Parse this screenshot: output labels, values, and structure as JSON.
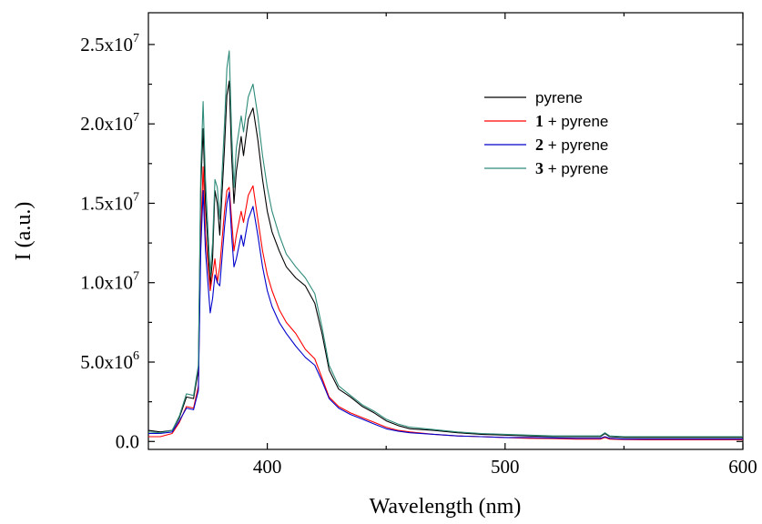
{
  "chart_data": {
    "type": "line",
    "xlabel": "Wavelength (nm)",
    "ylabel": "I (a.u.)",
    "xlim": [
      350,
      600
    ],
    "ylim": [
      -500000,
      27000000
    ],
    "x_ticks": [
      {
        "value": 400,
        "label": "400"
      },
      {
        "value": 500,
        "label": "500"
      },
      {
        "value": 600,
        "label": "600"
      }
    ],
    "y_ticks": [
      {
        "value": 0,
        "mant": "0.0",
        "exp": ""
      },
      {
        "value": 5000000,
        "mant": "5.0x10",
        "exp": "6"
      },
      {
        "value": 10000000,
        "mant": "1.0x10",
        "exp": "7"
      },
      {
        "value": 15000000,
        "mant": "1.5x10",
        "exp": "7"
      },
      {
        "value": 20000000,
        "mant": "2.0x10",
        "exp": "7"
      },
      {
        "value": 25000000,
        "mant": "2.5x10",
        "exp": "7"
      }
    ],
    "grid": false,
    "legend_position": "top-right",
    "series": [
      {
        "name": "pyrene",
        "bold_prefix": "",
        "label_rest": "pyrene",
        "color": "#000000",
        "points": [
          [
            350,
            700000
          ],
          [
            355,
            600000
          ],
          [
            360,
            700000
          ],
          [
            363,
            1500000
          ],
          [
            366,
            2800000
          ],
          [
            369,
            2700000
          ],
          [
            371,
            4500000
          ],
          [
            372,
            16000000
          ],
          [
            373,
            19700000
          ],
          [
            374,
            15000000
          ],
          [
            376,
            9800000
          ],
          [
            377,
            11500000
          ],
          [
            378,
            15800000
          ],
          [
            379,
            15000000
          ],
          [
            380,
            13000000
          ],
          [
            382,
            18500000
          ],
          [
            383,
            21800000
          ],
          [
            384,
            22700000
          ],
          [
            385,
            18000000
          ],
          [
            386,
            15000000
          ],
          [
            387,
            17000000
          ],
          [
            389,
            19200000
          ],
          [
            390,
            18000000
          ],
          [
            392,
            20300000
          ],
          [
            394,
            21000000
          ],
          [
            396,
            19000000
          ],
          [
            398,
            16500000
          ],
          [
            400,
            14500000
          ],
          [
            402,
            13200000
          ],
          [
            405,
            12000000
          ],
          [
            408,
            11000000
          ],
          [
            412,
            10300000
          ],
          [
            416,
            9800000
          ],
          [
            420,
            8700000
          ],
          [
            423,
            6800000
          ],
          [
            426,
            4500000
          ],
          [
            430,
            3300000
          ],
          [
            435,
            2800000
          ],
          [
            440,
            2200000
          ],
          [
            445,
            1800000
          ],
          [
            450,
            1300000
          ],
          [
            455,
            1000000
          ],
          [
            460,
            800000
          ],
          [
            470,
            700000
          ],
          [
            480,
            550000
          ],
          [
            490,
            450000
          ],
          [
            500,
            400000
          ],
          [
            510,
            350000
          ],
          [
            520,
            300000
          ],
          [
            530,
            300000
          ],
          [
            540,
            300000
          ],
          [
            542,
            500000
          ],
          [
            544,
            300000
          ],
          [
            550,
            250000
          ],
          [
            560,
            250000
          ],
          [
            570,
            250000
          ],
          [
            580,
            250000
          ],
          [
            590,
            250000
          ],
          [
            600,
            250000
          ]
        ]
      },
      {
        "name": "1 + pyrene",
        "bold_prefix": "1",
        "label_rest": " + pyrene",
        "color": "#ff0000",
        "points": [
          [
            350,
            300000
          ],
          [
            355,
            300000
          ],
          [
            360,
            500000
          ],
          [
            363,
            1200000
          ],
          [
            366,
            2200000
          ],
          [
            369,
            2100000
          ],
          [
            371,
            3500000
          ],
          [
            372,
            13000000
          ],
          [
            373,
            17300000
          ],
          [
            374,
            13000000
          ],
          [
            376,
            9500000
          ],
          [
            377,
            10500000
          ],
          [
            378,
            11500000
          ],
          [
            379,
            10000000
          ],
          [
            380,
            11000000
          ],
          [
            382,
            14500000
          ],
          [
            383,
            15800000
          ],
          [
            384,
            16000000
          ],
          [
            385,
            14000000
          ],
          [
            386,
            12000000
          ],
          [
            387,
            13000000
          ],
          [
            389,
            14500000
          ],
          [
            390,
            13800000
          ],
          [
            392,
            15500000
          ],
          [
            394,
            16100000
          ],
          [
            396,
            14000000
          ],
          [
            398,
            12000000
          ],
          [
            400,
            10500000
          ],
          [
            402,
            9500000
          ],
          [
            405,
            8300000
          ],
          [
            408,
            7500000
          ],
          [
            412,
            6800000
          ],
          [
            416,
            5800000
          ],
          [
            420,
            5200000
          ],
          [
            423,
            4000000
          ],
          [
            426,
            2800000
          ],
          [
            430,
            2200000
          ],
          [
            435,
            1800000
          ],
          [
            440,
            1500000
          ],
          [
            445,
            1200000
          ],
          [
            450,
            900000
          ],
          [
            455,
            700000
          ],
          [
            460,
            600000
          ],
          [
            470,
            450000
          ],
          [
            480,
            350000
          ],
          [
            490,
            300000
          ],
          [
            500,
            250000
          ],
          [
            510,
            200000
          ],
          [
            520,
            180000
          ],
          [
            530,
            150000
          ],
          [
            540,
            150000
          ],
          [
            542,
            250000
          ],
          [
            544,
            150000
          ],
          [
            550,
            120000
          ],
          [
            560,
            100000
          ],
          [
            570,
            100000
          ],
          [
            580,
            100000
          ],
          [
            590,
            100000
          ],
          [
            600,
            100000
          ]
        ]
      },
      {
        "name": "2 + pyrene",
        "bold_prefix": "2",
        "label_rest": " + pyrene",
        "color": "#0000cc",
        "points": [
          [
            350,
            500000
          ],
          [
            355,
            500000
          ],
          [
            360,
            600000
          ],
          [
            363,
            1300000
          ],
          [
            366,
            2100000
          ],
          [
            369,
            2000000
          ],
          [
            371,
            3200000
          ],
          [
            372,
            12000000
          ],
          [
            373,
            15800000
          ],
          [
            374,
            12000000
          ],
          [
            376,
            8100000
          ],
          [
            377,
            9000000
          ],
          [
            378,
            10500000
          ],
          [
            379,
            10000000
          ],
          [
            380,
            9800000
          ],
          [
            382,
            13500000
          ],
          [
            383,
            15000000
          ],
          [
            384,
            15700000
          ],
          [
            385,
            13000000
          ],
          [
            386,
            11000000
          ],
          [
            387,
            11500000
          ],
          [
            389,
            13000000
          ],
          [
            390,
            12300000
          ],
          [
            392,
            14000000
          ],
          [
            394,
            14800000
          ],
          [
            396,
            13000000
          ],
          [
            398,
            11000000
          ],
          [
            400,
            9500000
          ],
          [
            402,
            8500000
          ],
          [
            405,
            7500000
          ],
          [
            408,
            6800000
          ],
          [
            412,
            6000000
          ],
          [
            416,
            5300000
          ],
          [
            420,
            4800000
          ],
          [
            423,
            3800000
          ],
          [
            426,
            2700000
          ],
          [
            430,
            2100000
          ],
          [
            435,
            1700000
          ],
          [
            440,
            1400000
          ],
          [
            445,
            1100000
          ],
          [
            450,
            800000
          ],
          [
            455,
            650000
          ],
          [
            460,
            550000
          ],
          [
            470,
            450000
          ],
          [
            480,
            350000
          ],
          [
            490,
            300000
          ],
          [
            500,
            250000
          ],
          [
            510,
            250000
          ],
          [
            520,
            220000
          ],
          [
            530,
            200000
          ],
          [
            540,
            200000
          ],
          [
            542,
            300000
          ],
          [
            544,
            200000
          ],
          [
            550,
            150000
          ],
          [
            560,
            150000
          ],
          [
            570,
            150000
          ],
          [
            580,
            150000
          ],
          [
            590,
            150000
          ],
          [
            600,
            150000
          ]
        ]
      },
      {
        "name": "3 + pyrene",
        "bold_prefix": "3",
        "label_rest": " + pyrene",
        "color": "#2e8b7a",
        "points": [
          [
            350,
            600000
          ],
          [
            355,
            550000
          ],
          [
            360,
            700000
          ],
          [
            363,
            1600000
          ],
          [
            366,
            3000000
          ],
          [
            369,
            2900000
          ],
          [
            371,
            4800000
          ],
          [
            372,
            17000000
          ],
          [
            373,
            21400000
          ],
          [
            374,
            16500000
          ],
          [
            376,
            10500000
          ],
          [
            377,
            12500000
          ],
          [
            378,
            16500000
          ],
          [
            379,
            16000000
          ],
          [
            380,
            14000000
          ],
          [
            382,
            20000000
          ],
          [
            383,
            23500000
          ],
          [
            384,
            24600000
          ],
          [
            385,
            19500000
          ],
          [
            386,
            16000000
          ],
          [
            387,
            18500000
          ],
          [
            389,
            20500000
          ],
          [
            390,
            19500000
          ],
          [
            392,
            21700000
          ],
          [
            394,
            22500000
          ],
          [
            396,
            20500000
          ],
          [
            398,
            18000000
          ],
          [
            400,
            16000000
          ],
          [
            402,
            14500000
          ],
          [
            405,
            13000000
          ],
          [
            408,
            11800000
          ],
          [
            412,
            11000000
          ],
          [
            416,
            10300000
          ],
          [
            420,
            9300000
          ],
          [
            423,
            7200000
          ],
          [
            426,
            4800000
          ],
          [
            430,
            3500000
          ],
          [
            435,
            2900000
          ],
          [
            440,
            2300000
          ],
          [
            445,
            1900000
          ],
          [
            450,
            1400000
          ],
          [
            455,
            1100000
          ],
          [
            460,
            900000
          ],
          [
            470,
            750000
          ],
          [
            480,
            600000
          ],
          [
            490,
            500000
          ],
          [
            500,
            450000
          ],
          [
            510,
            400000
          ],
          [
            520,
            350000
          ],
          [
            530,
            350000
          ],
          [
            540,
            350000
          ],
          [
            542,
            550000
          ],
          [
            544,
            350000
          ],
          [
            550,
            300000
          ],
          [
            560,
            300000
          ],
          [
            570,
            300000
          ],
          [
            580,
            300000
          ],
          [
            590,
            300000
          ],
          [
            600,
            300000
          ]
        ]
      }
    ]
  }
}
